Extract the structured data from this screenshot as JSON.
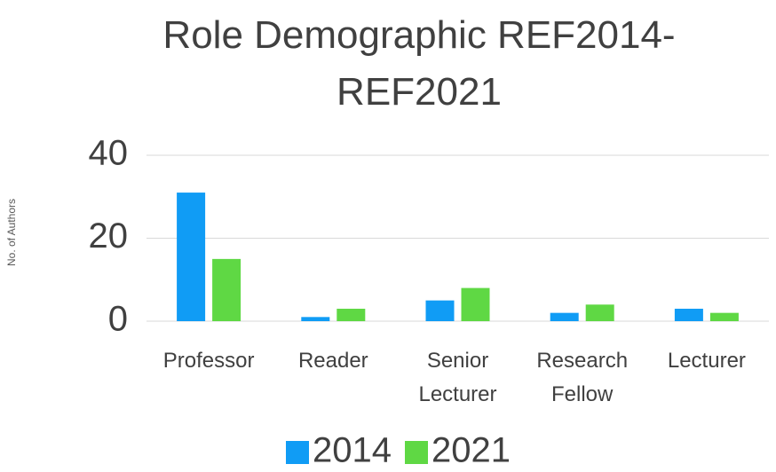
{
  "chart_data": {
    "type": "bar",
    "title": "Role Demographic REF2014-REF2021",
    "y_label": "No. of Authors",
    "categories": [
      "Professor",
      "Reader",
      "Senior Lecturer",
      "Research Fellow",
      "Lecturer"
    ],
    "series": [
      {
        "name": "2014",
        "color": "#109cf5",
        "values": [
          31,
          1,
          5,
          2,
          3
        ]
      },
      {
        "name": "2021",
        "color": "#5fd844",
        "values": [
          15,
          3,
          8,
          4,
          2
        ]
      }
    ],
    "ylim": [
      0,
      40
    ],
    "yticks": [
      0,
      20,
      40
    ],
    "grid": true,
    "legend": "bottom"
  }
}
